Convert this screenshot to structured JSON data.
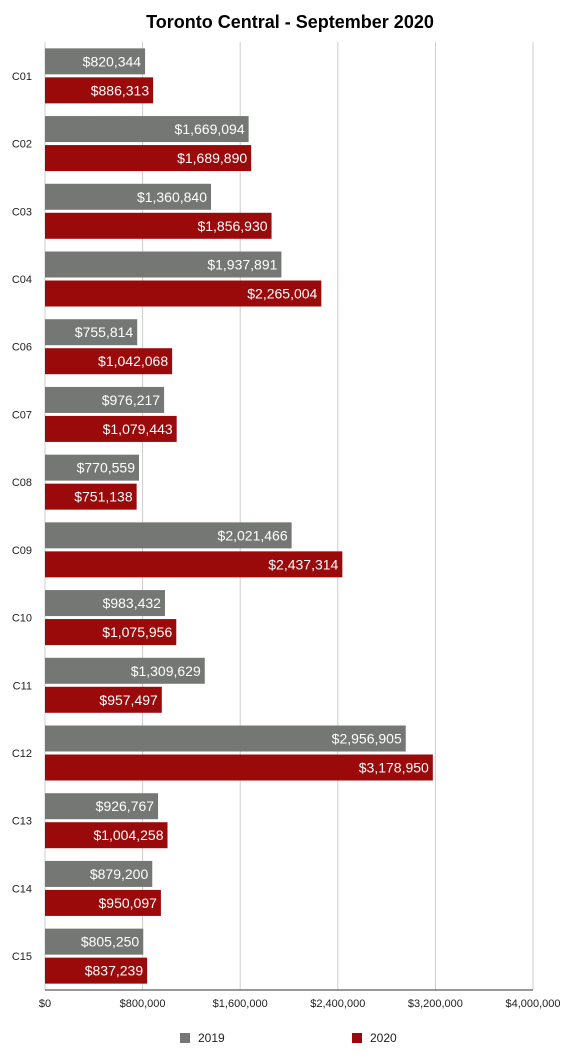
{
  "chart_data": {
    "type": "bar",
    "orientation": "horizontal",
    "title": "Toronto Central - September 2020",
    "categories": [
      "C01",
      "C02",
      "C03",
      "C04",
      "C06",
      "C07",
      "C08",
      "C09",
      "C10",
      "C11",
      "C12",
      "C13",
      "C14",
      "C15"
    ],
    "series": [
      {
        "name": "2019",
        "color": "#757775",
        "values": [
          820344,
          1669094,
          1360840,
          1937891,
          755814,
          976217,
          770559,
          2021466,
          983432,
          1309629,
          2956905,
          926767,
          879200,
          805250
        ],
        "labels": [
          "$820,344",
          "$1,669,094",
          "$1,360,840",
          "$1,937,891",
          "$755,814",
          "$976,217",
          "$770,559",
          "$2,021,466",
          "$983,432",
          "$1,309,629",
          "$2,956,905",
          "$926,767",
          "$879,200",
          "$805,250"
        ]
      },
      {
        "name": "2020",
        "color": "#9b0a0a",
        "values": [
          886313,
          1689890,
          1856930,
          2265004,
          1042068,
          1079443,
          751138,
          2437314,
          1075956,
          957497,
          3178950,
          1004258,
          950097,
          837239
        ],
        "labels": [
          "$886,313",
          "$1,689,890",
          "$1,856,930",
          "$2,265,004",
          "$1,042,068",
          "$1,079,443",
          "$751,138",
          "$2,437,314",
          "$1,075,956",
          "$957,497",
          "$3,178,950",
          "$1,004,258",
          "$950,097",
          "$837,239"
        ]
      }
    ],
    "xlim": [
      0,
      4000000
    ],
    "xticks": [
      0,
      800000,
      1600000,
      2400000,
      3200000,
      4000000
    ],
    "xtick_labels": [
      "$0",
      "$800,000",
      "$1,600,000",
      "$2,400,000",
      "$3,200,000",
      "$4,000,000"
    ],
    "grid": true,
    "legend": "bottom",
    "xlabel": "",
    "ylabel": ""
  }
}
